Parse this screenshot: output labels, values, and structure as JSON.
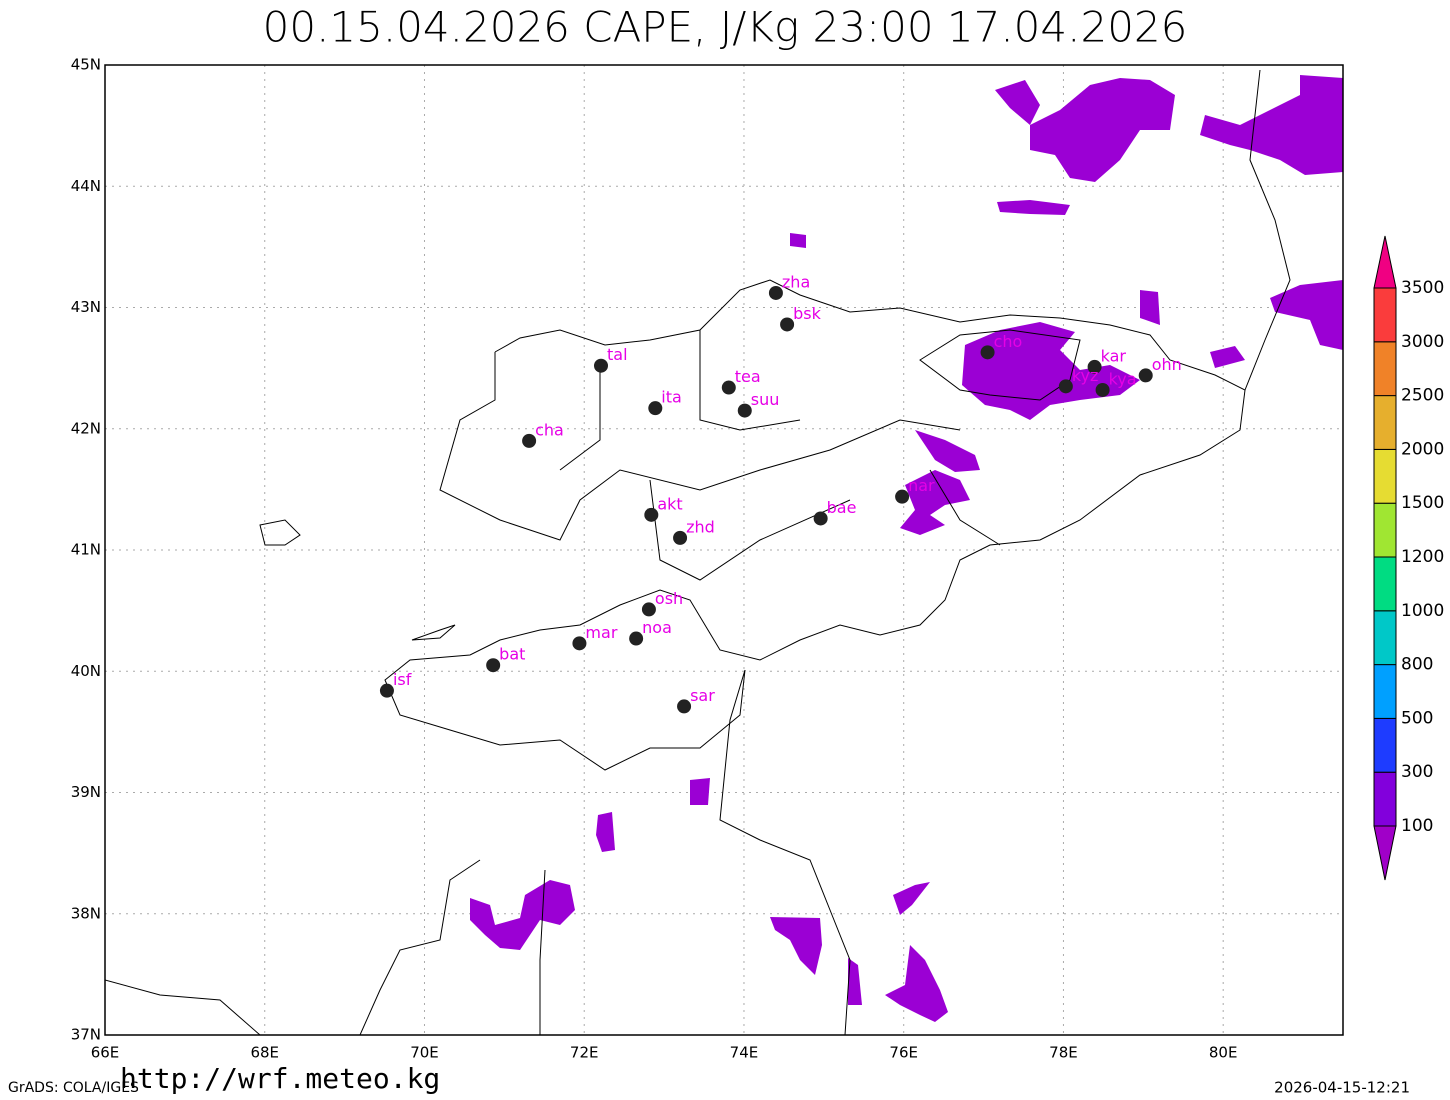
{
  "map": {
    "title": "00.15.04.2026 CAPE, J/Kg 23:00 17.04.2026",
    "xlim": [
      66,
      81.5
    ],
    "ylim": [
      37,
      45
    ],
    "xticks": [
      {
        "value": 66,
        "label": "66E"
      },
      {
        "value": 68,
        "label": "68E"
      },
      {
        "value": 70,
        "label": "70E"
      },
      {
        "value": 72,
        "label": "72E"
      },
      {
        "value": 74,
        "label": "74E"
      },
      {
        "value": 76,
        "label": "76E"
      },
      {
        "value": 78,
        "label": "78E"
      },
      {
        "value": 80,
        "label": "80E"
      }
    ],
    "yticks": [
      {
        "value": 37,
        "label": "37N"
      },
      {
        "value": 38,
        "label": "38N"
      },
      {
        "value": 39,
        "label": "39N"
      },
      {
        "value": 40,
        "label": "40N"
      },
      {
        "value": 41,
        "label": "41N"
      },
      {
        "value": 42,
        "label": "42N"
      },
      {
        "value": 43,
        "label": "43N"
      },
      {
        "value": 44,
        "label": "44N"
      },
      {
        "value": 45,
        "label": "45N"
      }
    ],
    "stations": [
      {
        "label": "zha",
        "lon": 74.4,
        "lat": 43.12
      },
      {
        "label": "bsk",
        "lon": 74.54,
        "lat": 42.86
      },
      {
        "label": "tal",
        "lon": 72.21,
        "lat": 42.52
      },
      {
        "label": "tea",
        "lon": 73.81,
        "lat": 42.34
      },
      {
        "label": "suu",
        "lon": 74.01,
        "lat": 42.15
      },
      {
        "label": "ita",
        "lon": 72.89,
        "lat": 42.17
      },
      {
        "label": "cha",
        "lon": 71.31,
        "lat": 41.9
      },
      {
        "label": "akt",
        "lon": 72.84,
        "lat": 41.29
      },
      {
        "label": "zhd",
        "lon": 73.2,
        "lat": 41.1
      },
      {
        "label": "bae",
        "lon": 74.96,
        "lat": 41.26
      },
      {
        "label": "nar",
        "lon": 75.98,
        "lat": 41.44
      },
      {
        "label": "cho",
        "lon": 77.05,
        "lat": 42.63
      },
      {
        "label": "kar",
        "lon": 78.39,
        "lat": 42.51
      },
      {
        "label": "kyz",
        "lon": 78.03,
        "lat": 42.35
      },
      {
        "label": "kya",
        "lon": 78.49,
        "lat": 42.32
      },
      {
        "label": "ohn",
        "lon": 79.03,
        "lat": 42.44
      },
      {
        "label": "osh",
        "lon": 72.81,
        "lat": 40.51
      },
      {
        "label": "noa",
        "lon": 72.65,
        "lat": 40.27
      },
      {
        "label": "mar",
        "lon": 71.94,
        "lat": 40.23
      },
      {
        "label": "bat",
        "lon": 70.86,
        "lat": 40.05
      },
      {
        "label": "isf",
        "lon": 69.53,
        "lat": 39.84
      },
      {
        "label": "sar",
        "lon": 73.25,
        "lat": 39.71
      }
    ],
    "colorbar": {
      "levels": [
        100,
        300,
        500,
        800,
        1000,
        1200,
        1500,
        2000,
        2500,
        3000,
        3500
      ],
      "colors": [
        "#a000c8",
        "#8200dc",
        "#1e3cff",
        "#00a0ff",
        "#00c8c8",
        "#00dc82",
        "#a0e632",
        "#e6dc32",
        "#e6af2d",
        "#f08228",
        "#fa3c3c",
        "#f00082"
      ]
    },
    "footer_left": "GrADS: COLA/IGES",
    "footer_url": "http://wrf.meteo.kg",
    "footer_right": "2026-04-15-12:21"
  }
}
